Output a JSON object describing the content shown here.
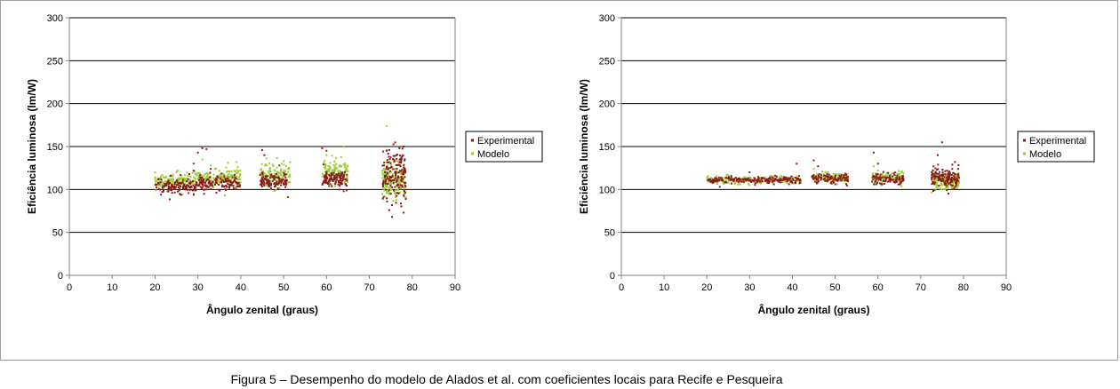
{
  "figure": {
    "caption": "Figura 5 – Desempenho do modelo de  Alados et al. com coeficientes locais para Recife e Pesqueira"
  },
  "colors": {
    "experimental": "#8b1a1a",
    "modelo": "#9acd32",
    "gridline": "#000000",
    "axis": "#808080"
  },
  "chart_data": [
    {
      "type": "scatter",
      "xlabel": "Ângulo zenital (graus)",
      "ylabel": "Eficiência luminosa (lm/W)",
      "xlim": [
        0,
        90
      ],
      "ylim": [
        0,
        300
      ],
      "xticks": [
        0,
        10,
        20,
        30,
        40,
        50,
        60,
        70,
        80,
        90
      ],
      "yticks": [
        0,
        50,
        100,
        150,
        200,
        250,
        300
      ],
      "grid": "horizontal",
      "legend_position": "right",
      "series": [
        {
          "name": "Experimental",
          "color_key": "experimental",
          "clusters": [
            {
              "x": [
                20,
                30
              ],
              "y_center": 104,
              "y_spread": 4,
              "n": 130,
              "outliers": [
                [
                  24,
                  96
                ],
                [
                  26,
                  94
                ],
                [
                  28,
                  118
                ],
                [
                  29,
                  122
                ]
              ]
            },
            {
              "x": [
                30,
                40
              ],
              "y_center": 107,
              "y_spread": 4,
              "n": 140,
              "outliers": [
                [
                  30,
                  143
                ],
                [
                  31,
                  148
                ],
                [
                  32,
                  147
                ],
                [
                  33,
                  124
                ],
                [
                  29,
                  130
                ]
              ]
            },
            {
              "x": [
                44.5,
                51
              ],
              "y_center": 110,
              "y_spread": 4,
              "n": 110,
              "outliers": [
                [
                  45,
                  146
                ],
                [
                  45.5,
                  140
                ],
                [
                  49,
                  128
                ],
                [
                  51,
                  91
                ]
              ]
            },
            {
              "x": [
                59,
                65
              ],
              "y_center": 112,
              "y_spread": 5,
              "n": 110,
              "outliers": [
                [
                  59,
                  148
                ],
                [
                  60,
                  145
                ],
                [
                  63,
                  100
                ],
                [
                  64,
                  98
                ]
              ]
            },
            {
              "x": [
                73,
                78.5
              ],
              "y_center": 118,
              "y_spread": 16,
              "n": 160,
              "outliers": [
                [
                  74,
                  145
                ],
                [
                  77,
                  148
                ],
                [
                  78,
                  150
                ],
                [
                  78,
                  73
                ],
                [
                  75,
                  95
                ]
              ]
            }
          ]
        },
        {
          "name": "Modelo",
          "color_key": "modelo",
          "clusters": [
            {
              "x": [
                20,
                29
              ],
              "y_center": 110,
              "y_spread": 4,
              "n": 130,
              "outliers": [
                [
                  20,
                  120
                ],
                [
                  22,
                  100
                ],
                [
                  25,
                  120
                ]
              ]
            },
            {
              "x": [
                29,
                40
              ],
              "y_center": 114,
              "y_spread": 5,
              "n": 170,
              "outliers": [
                [
                  31,
                  135
                ],
                [
                  33,
                  128
                ],
                [
                  37,
                  131
                ],
                [
                  39,
                  132
                ]
              ]
            },
            {
              "x": [
                44.5,
                51.5
              ],
              "y_center": 117,
              "y_spread": 7,
              "n": 130,
              "outliers": [
                [
                  46,
                  136
                ],
                [
                  50,
                  133
                ],
                [
                  49,
                  102
                ]
              ]
            },
            {
              "x": [
                59,
                65
              ],
              "y_center": 120,
              "y_spread": 7,
              "n": 130,
              "outliers": [
                [
                  60,
                  140
                ],
                [
                  64,
                  150
                ],
                [
                  62,
                  104
                ]
              ]
            },
            {
              "x": [
                73,
                78.5
              ],
              "y_center": 112,
              "y_spread": 10,
              "n": 180,
              "outliers": [
                [
                  74,
                  174
                ],
                [
                  75,
                  130
                ],
                [
                  77,
                  96
                ]
              ]
            }
          ]
        }
      ]
    },
    {
      "type": "scatter",
      "xlabel": "Ângulo zenital (graus)",
      "ylabel": "Eficiência luminosa (lm/W)",
      "xlim": [
        0,
        90
      ],
      "ylim": [
        0,
        300
      ],
      "xticks": [
        0,
        10,
        20,
        30,
        40,
        50,
        60,
        70,
        80,
        90
      ],
      "yticks": [
        0,
        50,
        100,
        150,
        200,
        250,
        300
      ],
      "grid": "horizontal",
      "legend_position": "right",
      "series": [
        {
          "name": "Experimental",
          "color_key": "experimental",
          "clusters": [
            {
              "x": [
                20,
                42
              ],
              "y_center": 111,
              "y_spread": 2,
              "n": 200,
              "outliers": [
                [
                  23,
                  103
                ],
                [
                  30,
                  120
                ],
                [
                  41,
                  130
                ],
                [
                  36,
                  116
                ]
              ]
            },
            {
              "x": [
                44.5,
                53
              ],
              "y_center": 113,
              "y_spread": 3,
              "n": 100,
              "outliers": [
                [
                  45,
                  134
                ],
                [
                  46,
                  127
                ],
                [
                  50,
                  106
                ]
              ]
            },
            {
              "x": [
                58.5,
                66
              ],
              "y_center": 112,
              "y_spread": 3,
              "n": 100,
              "outliers": [
                [
                  59,
                  143
                ],
                [
                  60,
                  130
                ],
                [
                  61,
                  106
                ]
              ]
            },
            {
              "x": [
                72.5,
                79
              ],
              "y_center": 113,
              "y_spread": 6,
              "n": 140,
              "outliers": [
                [
                  75,
                  155
                ],
                [
                  74,
                  140
                ],
                [
                  73,
                  127
                ],
                [
                  78,
                  132
                ]
              ]
            }
          ]
        },
        {
          "name": "Modelo",
          "color_key": "modelo",
          "clusters": [
            {
              "x": [
                20,
                42
              ],
              "y_center": 111,
              "y_spread": 2,
              "n": 220,
              "outliers": [
                [
                  25,
                  117
                ],
                [
                  35,
                  116
                ]
              ]
            },
            {
              "x": [
                44.5,
                53
              ],
              "y_center": 114,
              "y_spread": 3,
              "n": 110,
              "outliers": [
                [
                  45,
                  124
                ],
                [
                  47,
                  121
                ]
              ]
            },
            {
              "x": [
                58.5,
                66
              ],
              "y_center": 113,
              "y_spread": 3,
              "n": 110,
              "outliers": [
                [
                  59,
                  127
                ],
                [
                  60,
                  122
                ]
              ]
            },
            {
              "x": [
                72.5,
                79
              ],
              "y_center": 110,
              "y_spread": 5,
              "n": 160,
              "outliers": [
                [
                  73,
                  122
                ],
                [
                  78,
                  102
                ]
              ]
            }
          ]
        }
      ]
    }
  ]
}
